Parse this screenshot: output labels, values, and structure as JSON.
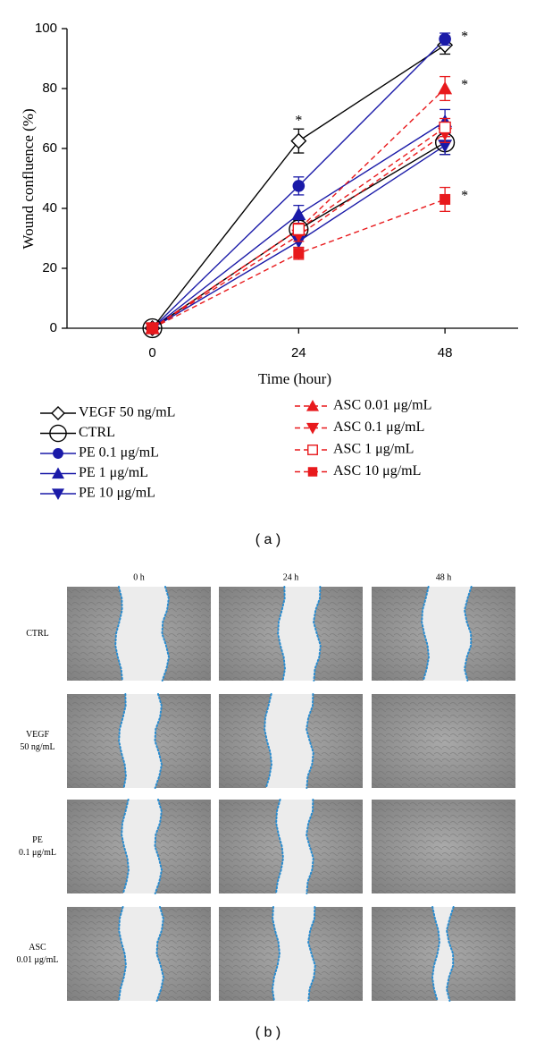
{
  "chart_data": {
    "type": "line",
    "panel_label": "( a )",
    "x_label": "Time (hour)",
    "y_label": "Wound confluence (%)",
    "x": [
      0,
      24,
      48
    ],
    "xlim": [
      -14,
      60
    ],
    "xticks": [
      0,
      24,
      48
    ],
    "ylim": [
      0,
      100
    ],
    "yticks": [
      0,
      20,
      40,
      60,
      80,
      100
    ],
    "series": [
      {
        "name": "VEGF 50 ng/mL",
        "color": "#000000",
        "marker": "diamond",
        "dashed": false,
        "values": [
          0,
          62.5,
          94.5
        ],
        "errors": [
          0,
          4,
          3
        ]
      },
      {
        "name": "CTRL",
        "color": "#000000",
        "marker": "circle-open",
        "dashed": false,
        "values": [
          0,
          33,
          62
        ],
        "errors": [
          0,
          3,
          4
        ]
      },
      {
        "name": "PE 0.1 μg/mL",
        "color": "#1a1aa8",
        "marker": "circle",
        "dashed": false,
        "values": [
          0,
          47.5,
          96.5
        ],
        "errors": [
          0,
          3,
          2
        ]
      },
      {
        "name": "PE 1 μg/mL",
        "color": "#1a1aa8",
        "marker": "triangle-up",
        "dashed": false,
        "values": [
          0,
          38,
          69
        ],
        "errors": [
          0,
          3,
          4
        ]
      },
      {
        "name": "PE 10 μg/mL",
        "color": "#1a1aa8",
        "marker": "triangle-down",
        "dashed": false,
        "values": [
          0,
          29,
          61
        ],
        "errors": [
          0,
          2,
          3
        ]
      },
      {
        "name": "ASC 0.01 μg/mL",
        "color": "#e8191c",
        "marker": "triangle-up",
        "dashed": true,
        "values": [
          0,
          33,
          80
        ],
        "errors": [
          0,
          2,
          4
        ]
      },
      {
        "name": "ASC 0.1 μg/mL",
        "color": "#e8191c",
        "marker": "triangle-down",
        "dashed": true,
        "values": [
          0,
          31,
          65
        ],
        "errors": [
          0,
          2,
          3
        ]
      },
      {
        "name": "ASC 1 μg/mL",
        "color": "#e8191c",
        "marker": "square-open",
        "dashed": true,
        "values": [
          0,
          33,
          67
        ],
        "errors": [
          0,
          2,
          3
        ]
      },
      {
        "name": "ASC 10 μg/mL",
        "color": "#e8191c",
        "marker": "square",
        "dashed": true,
        "values": [
          0,
          25,
          43
        ],
        "errors": [
          0,
          2,
          4
        ]
      }
    ],
    "annotations": [
      {
        "text": "*",
        "x": 24,
        "y": 69
      },
      {
        "text": "*",
        "x": 48,
        "y": 97
      },
      {
        "text": "*",
        "x": 48,
        "y": 81
      },
      {
        "text": "*",
        "x": 48,
        "y": 44
      }
    ]
  },
  "micrograph_grid": {
    "panel_label": "( b )",
    "columns": [
      "0 h",
      "24 h",
      "48 h"
    ],
    "rows": [
      [
        "CTRL"
      ],
      [
        "VEGF",
        "50 ng/mL"
      ],
      [
        "PE",
        "0.1 μg/mL"
      ],
      [
        "ASC",
        "0.01 μg/mL"
      ]
    ]
  }
}
